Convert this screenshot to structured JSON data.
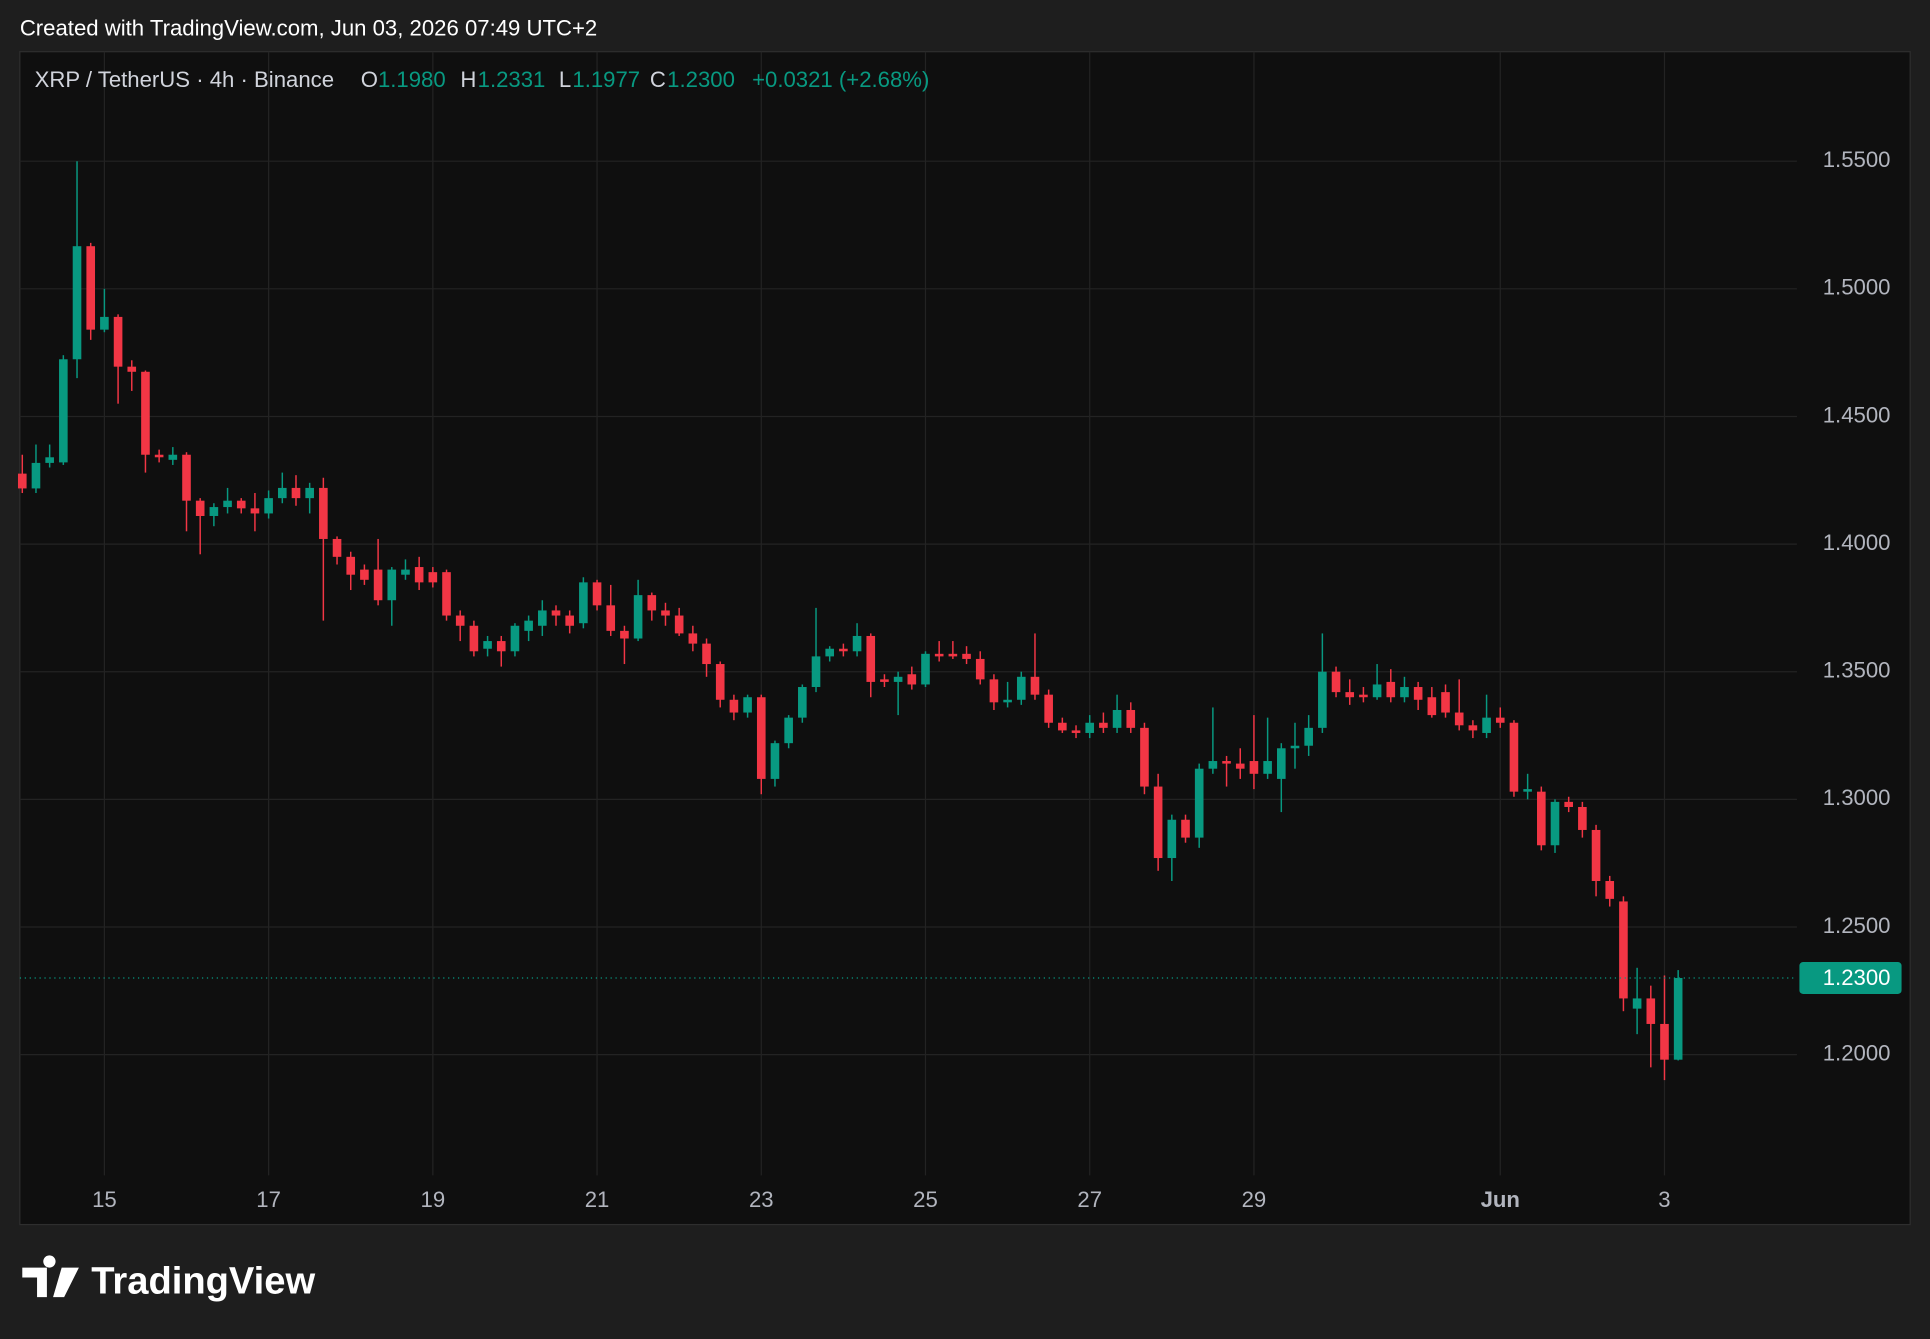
{
  "watermark": "Created with TradingView.com, Jun 03, 2026 07:49 UTC+2",
  "legend": {
    "symbol": "XRP / TetherUS · 4h · Binance",
    "o": "O",
    "open": "1.1980",
    "h": "H",
    "high": "1.2331",
    "l": "L",
    "low": "1.1977",
    "c": "C",
    "close": "1.2300",
    "change": "+0.0321 (+2.68%)"
  },
  "footer": "TradingView",
  "chart_data": {
    "type": "candlestick",
    "up_color": "#089981",
    "down_color": "#f23645",
    "grid": true,
    "open": [
      1.4276,
      1.4218,
      1.4318,
      1.432,
      1.4724,
      1.5167,
      1.484,
      1.489,
      1.4695,
      1.4675,
      1.435,
      1.433,
      1.435,
      1.417,
      1.411,
      1.4145,
      1.417,
      1.414,
      1.412,
      1.418,
      1.422,
      1.418,
      1.422,
      1.402,
      1.395,
      1.39,
      1.39,
      1.378,
      1.388,
      1.391,
      1.389,
      1.389,
      1.372,
      1.368,
      1.359,
      1.362,
      1.358,
      1.366,
      1.368,
      1.374,
      1.372,
      1.369,
      1.385,
      1.376,
      1.366,
      1.363,
      1.38,
      1.374,
      1.372,
      1.365,
      1.361,
      1.353,
      1.339,
      1.334,
      1.34,
      1.308,
      1.322,
      1.332,
      1.344,
      1.356,
      1.359,
      1.358,
      1.364,
      1.347,
      1.346,
      1.349,
      1.345,
      1.357,
      1.357,
      1.357,
      1.355,
      1.347,
      1.338,
      1.339,
      1.348,
      1.341,
      1.33,
      1.327,
      1.326,
      1.33,
      1.328,
      1.335,
      1.328,
      1.305,
      1.277,
      1.292,
      1.285,
      1.312,
      1.315,
      1.314,
      1.315,
      1.31,
      1.308,
      1.32,
      1.321,
      1.328,
      1.35,
      1.342,
      1.341,
      1.34,
      1.346,
      1.34,
      1.344,
      1.34,
      1.342,
      1.334,
      1.329,
      1.326,
      1.332,
      1.33,
      1.303,
      1.303,
      1.282,
      1.299,
      1.297,
      1.288,
      1.268,
      1.26,
      1.218,
      1.222,
      1.212,
      1.198
    ],
    "high": [
      1.435,
      1.439,
      1.439,
      1.474,
      1.55,
      1.518,
      1.5,
      1.49,
      1.472,
      1.468,
      1.437,
      1.438,
      1.436,
      1.418,
      1.416,
      1.422,
      1.418,
      1.42,
      1.421,
      1.428,
      1.427,
      1.424,
      1.426,
      1.403,
      1.397,
      1.392,
      1.402,
      1.391,
      1.394,
      1.395,
      1.391,
      1.39,
      1.374,
      1.37,
      1.364,
      1.364,
      1.369,
      1.372,
      1.378,
      1.376,
      1.374,
      1.387,
      1.386,
      1.384,
      1.368,
      1.386,
      1.381,
      1.377,
      1.375,
      1.368,
      1.363,
      1.354,
      1.341,
      1.341,
      1.341,
      1.323,
      1.333,
      1.345,
      1.375,
      1.36,
      1.361,
      1.369,
      1.365,
      1.349,
      1.35,
      1.352,
      1.358,
      1.362,
      1.362,
      1.36,
      1.358,
      1.349,
      1.346,
      1.35,
      1.365,
      1.343,
      1.332,
      1.329,
      1.333,
      1.334,
      1.341,
      1.338,
      1.33,
      1.31,
      1.294,
      1.294,
      1.314,
      1.336,
      1.317,
      1.32,
      1.333,
      1.332,
      1.322,
      1.33,
      1.333,
      1.365,
      1.352,
      1.347,
      1.344,
      1.353,
      1.351,
      1.348,
      1.346,
      1.344,
      1.345,
      1.347,
      1.331,
      1.341,
      1.336,
      1.331,
      1.31,
      1.305,
      1.3,
      1.301,
      1.299,
      1.29,
      1.27,
      1.262,
      1.234,
      1.227,
      1.231,
      1.2331
    ],
    "low": [
      1.42,
      1.42,
      1.43,
      1.431,
      1.465,
      1.48,
      1.483,
      1.455,
      1.46,
      1.428,
      1.432,
      1.431,
      1.405,
      1.396,
      1.407,
      1.412,
      1.412,
      1.405,
      1.41,
      1.416,
      1.415,
      1.412,
      1.37,
      1.392,
      1.382,
      1.384,
      1.376,
      1.368,
      1.386,
      1.382,
      1.383,
      1.37,
      1.362,
      1.356,
      1.356,
      1.352,
      1.356,
      1.362,
      1.364,
      1.368,
      1.365,
      1.367,
      1.374,
      1.364,
      1.353,
      1.362,
      1.37,
      1.368,
      1.364,
      1.358,
      1.348,
      1.336,
      1.331,
      1.332,
      1.302,
      1.305,
      1.32,
      1.33,
      1.342,
      1.354,
      1.356,
      1.356,
      1.34,
      1.344,
      1.333,
      1.343,
      1.344,
      1.354,
      1.355,
      1.353,
      1.345,
      1.335,
      1.336,
      1.337,
      1.339,
      1.328,
      1.326,
      1.324,
      1.324,
      1.326,
      1.326,
      1.326,
      1.302,
      1.272,
      1.268,
      1.283,
      1.281,
      1.31,
      1.305,
      1.308,
      1.304,
      1.308,
      1.295,
      1.312,
      1.317,
      1.326,
      1.34,
      1.337,
      1.338,
      1.339,
      1.338,
      1.338,
      1.335,
      1.332,
      1.332,
      1.327,
      1.324,
      1.324,
      1.328,
      1.301,
      1.3,
      1.28,
      1.279,
      1.295,
      1.285,
      1.262,
      1.258,
      1.217,
      1.208,
      1.195,
      1.19,
      1.1977
    ],
    "close": [
      1.4218,
      1.4318,
      1.434,
      1.4724,
      1.5167,
      1.484,
      1.489,
      1.4695,
      1.4675,
      1.435,
      1.434,
      1.435,
      1.417,
      1.411,
      1.4145,
      1.417,
      1.414,
      1.412,
      1.418,
      1.422,
      1.418,
      1.422,
      1.402,
      1.395,
      1.388,
      1.386,
      1.378,
      1.39,
      1.39,
      1.385,
      1.385,
      1.372,
      1.368,
      1.358,
      1.362,
      1.358,
      1.368,
      1.37,
      1.374,
      1.372,
      1.368,
      1.385,
      1.376,
      1.366,
      1.363,
      1.38,
      1.374,
      1.372,
      1.365,
      1.361,
      1.353,
      1.339,
      1.334,
      1.34,
      1.308,
      1.322,
      1.332,
      1.344,
      1.356,
      1.359,
      1.358,
      1.364,
      1.346,
      1.346,
      1.348,
      1.345,
      1.357,
      1.356,
      1.356,
      1.355,
      1.347,
      1.338,
      1.339,
      1.348,
      1.341,
      1.33,
      1.327,
      1.326,
      1.33,
      1.328,
      1.335,
      1.328,
      1.305,
      1.277,
      1.292,
      1.285,
      1.312,
      1.315,
      1.314,
      1.312,
      1.31,
      1.315,
      1.32,
      1.321,
      1.328,
      1.35,
      1.342,
      1.34,
      1.34,
      1.345,
      1.34,
      1.344,
      1.339,
      1.333,
      1.334,
      1.329,
      1.327,
      1.332,
      1.33,
      1.303,
      1.304,
      1.282,
      1.299,
      1.297,
      1.288,
      1.268,
      1.261,
      1.222,
      1.222,
      1.212,
      1.198,
      1.23
    ],
    "xlim": [
      -0.18,
      129.68
    ],
    "xticks": [
      {
        "value": 6,
        "label": "15"
      },
      {
        "value": 18,
        "label": "17"
      },
      {
        "value": 30,
        "label": "19"
      },
      {
        "value": 42,
        "label": "21"
      },
      {
        "value": 54,
        "label": "23"
      },
      {
        "value": 66,
        "label": "25"
      },
      {
        "value": 78,
        "label": "27"
      },
      {
        "value": 90,
        "label": "29"
      },
      {
        "value": 108,
        "label": "Jun"
      },
      {
        "value": 120,
        "label": "3"
      }
    ],
    "ylim": [
      1.1527,
      1.5929
    ],
    "yticks": [
      {
        "value": 1.2,
        "label": "1.2000"
      },
      {
        "value": 1.25,
        "label": "1.2500"
      },
      {
        "value": 1.3,
        "label": "1.3000"
      },
      {
        "value": 1.35,
        "label": "1.3500"
      },
      {
        "value": 1.4,
        "label": "1.4000"
      },
      {
        "value": 1.45,
        "label": "1.4500"
      },
      {
        "value": 1.5,
        "label": "1.5000"
      },
      {
        "value": 1.55,
        "label": "1.5500"
      }
    ],
    "last_price": {
      "value": 1.23,
      "label": "1.2300"
    }
  }
}
